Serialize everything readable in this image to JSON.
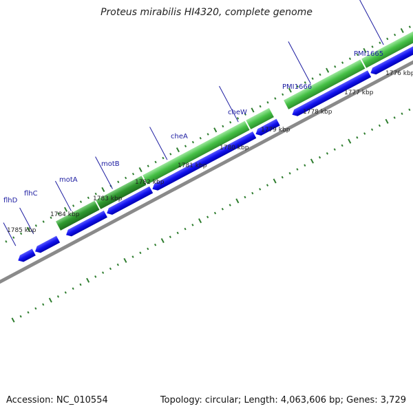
{
  "title": "Proteus mirabilis HI4320, complete genome",
  "footer": {
    "accession": "Accession: NC_010554",
    "summary": "Topology: circular; Length: 4,063,606 bp; Genes: 3,729"
  },
  "ruler_labels": [
    "1776 kbp",
    "1777 kbp",
    "1778 kbp",
    "1779 kbp",
    "1780 kbp",
    "1781 kbp",
    "1782 kbp",
    "1783 kbp",
    "1784 kbp",
    "1785 kbp"
  ],
  "gene_labels": [
    "PMI1665",
    "PMI1666",
    "cheW",
    "cheA",
    "motB",
    "motA",
    "flhC",
    "flhD"
  ],
  "colors": {
    "backbone": "#8a8a8a",
    "cds_green": "#2f9a2f",
    "gene_blue": "#1111ee",
    "tick_green": "#2e7d2e",
    "label_blue": "#1a1aa0"
  }
}
